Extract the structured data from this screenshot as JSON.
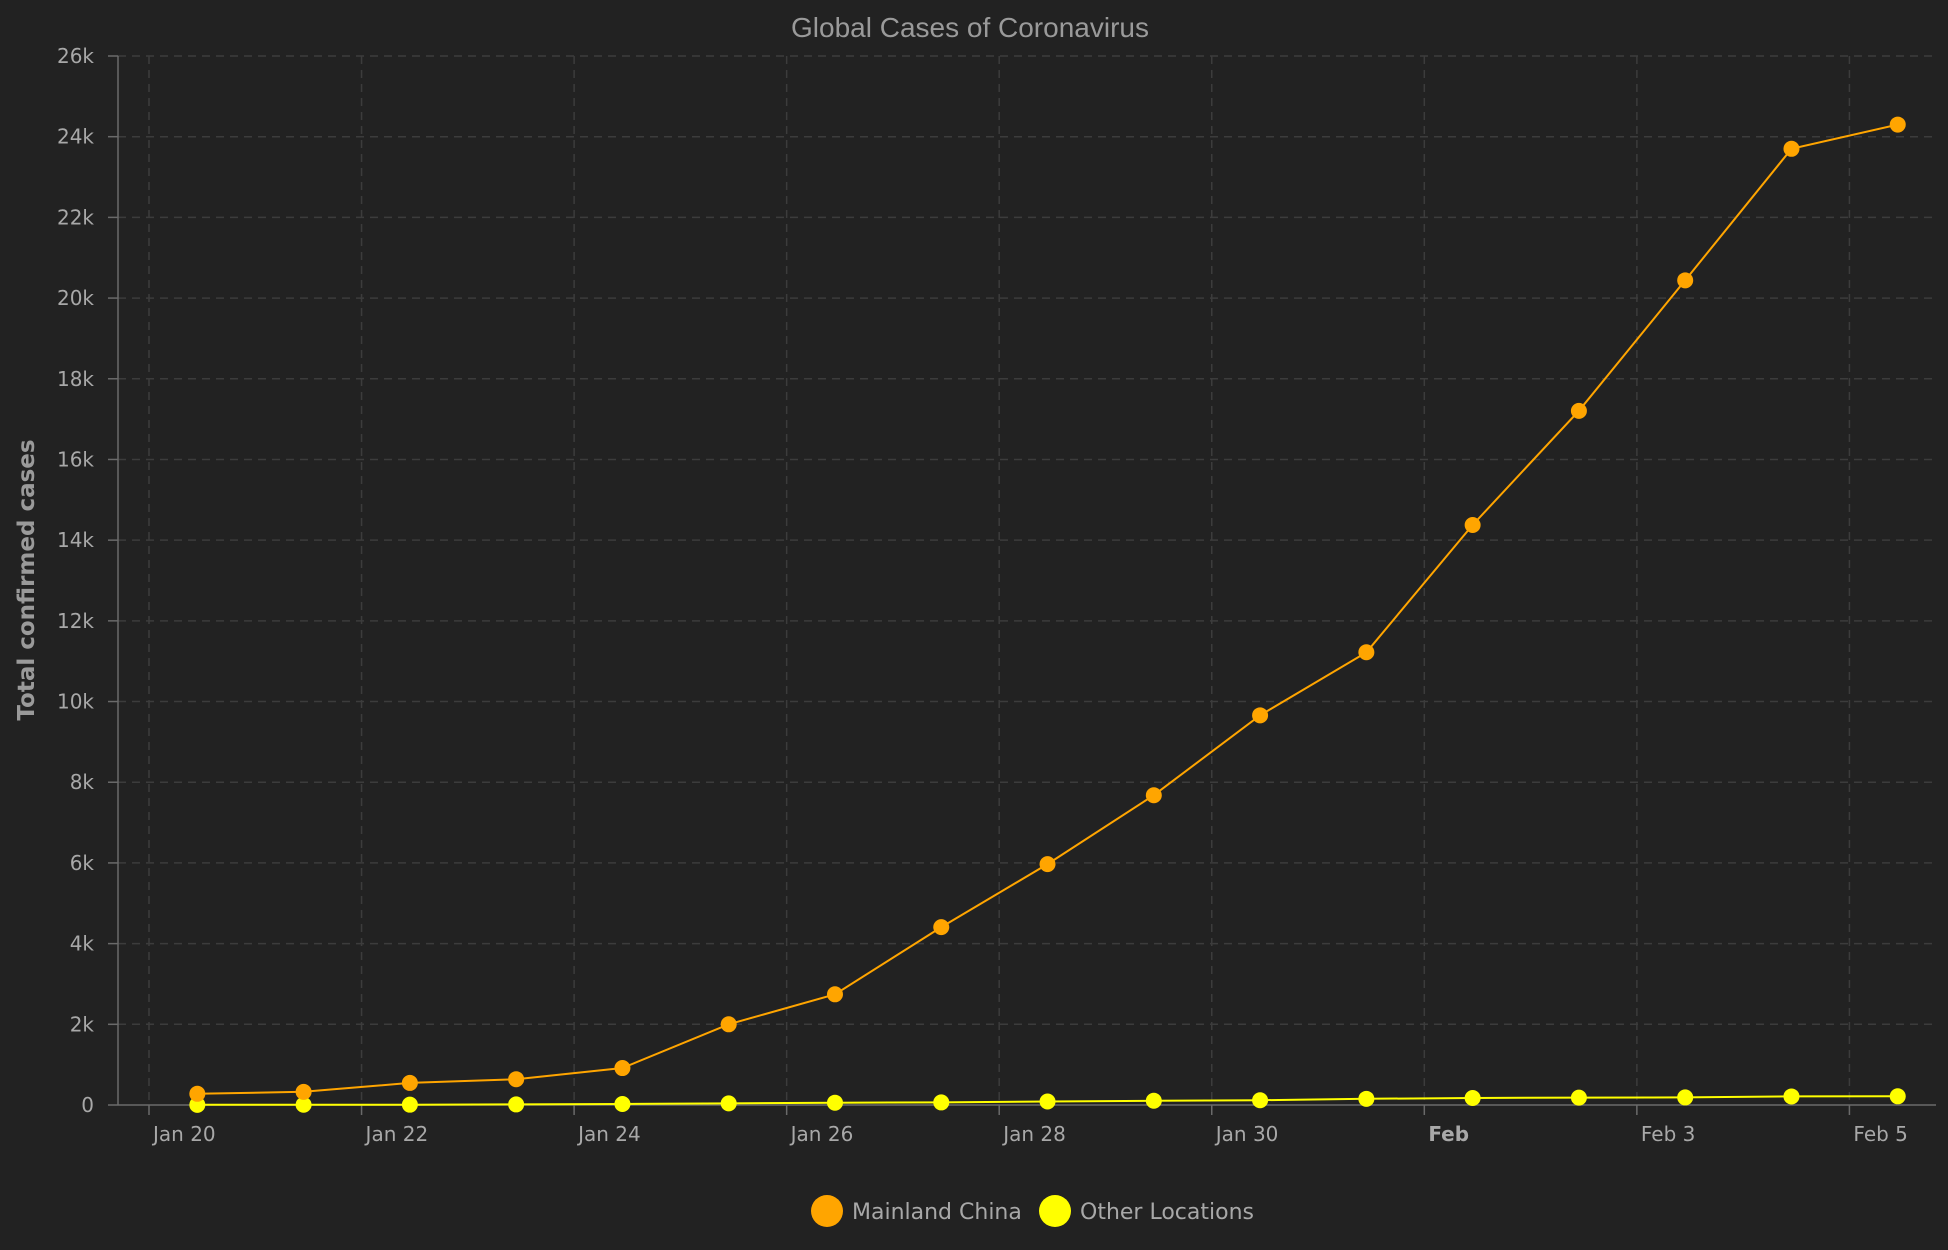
{
  "chart_data": {
    "type": "line",
    "title": "Global Cases of Coronavirus",
    "ylabel": "Total confirmed cases",
    "xlabel": "",
    "xlim": [
      "2020-01-20",
      "2020-02-05"
    ],
    "ylim": [
      0,
      26000
    ],
    "y_ticks": [
      0,
      2000,
      4000,
      6000,
      8000,
      10000,
      12000,
      14000,
      16000,
      18000,
      20000,
      22000,
      24000,
      26000
    ],
    "y_tick_labels": [
      "0",
      "2k",
      "4k",
      "6k",
      "8k",
      "10k",
      "12k",
      "14k",
      "16k",
      "18k",
      "20k",
      "22k",
      "24k",
      "26k"
    ],
    "x_ticks": [
      {
        "label": "Jan 20",
        "date": "2020-01-20",
        "bold": false
      },
      {
        "label": "Jan 22",
        "date": "2020-01-22",
        "bold": false
      },
      {
        "label": "Jan 24",
        "date": "2020-01-24",
        "bold": false
      },
      {
        "label": "Jan 26",
        "date": "2020-01-26",
        "bold": false
      },
      {
        "label": "Jan 28",
        "date": "2020-01-28",
        "bold": false
      },
      {
        "label": "Jan 30",
        "date": "2020-01-30",
        "bold": false
      },
      {
        "label": "Feb",
        "date": "2020-02-01",
        "bold": true
      },
      {
        "label": "Feb 3",
        "date": "2020-02-03",
        "bold": false
      },
      {
        "label": "Feb 5",
        "date": "2020-02-05",
        "bold": false
      }
    ],
    "grid": true,
    "legend_position": "bottom-center",
    "x": [
      "2020-01-20",
      "2020-01-21",
      "2020-01-22",
      "2020-01-23",
      "2020-01-24",
      "2020-01-25",
      "2020-01-26",
      "2020-01-27",
      "2020-01-28",
      "2020-01-29",
      "2020-01-30",
      "2020-01-31",
      "2020-02-01",
      "2020-02-02",
      "2020-02-03",
      "2020-02-04",
      "2020-02-05"
    ],
    "series": [
      {
        "name": "Mainland China",
        "color": "#ffa500",
        "values": [
          278,
          326,
          547,
          639,
          916,
          2000,
          2744,
          4409,
          5970,
          7678,
          9658,
          11221,
          14375,
          17205,
          20440,
          23700,
          24300
        ]
      },
      {
        "name": "Other Locations",
        "color": "#ffff00",
        "values": [
          4,
          6,
          8,
          14,
          25,
          40,
          57,
          64,
          87,
          105,
          118,
          153,
          173,
          183,
          188,
          212,
          216
        ]
      }
    ]
  }
}
